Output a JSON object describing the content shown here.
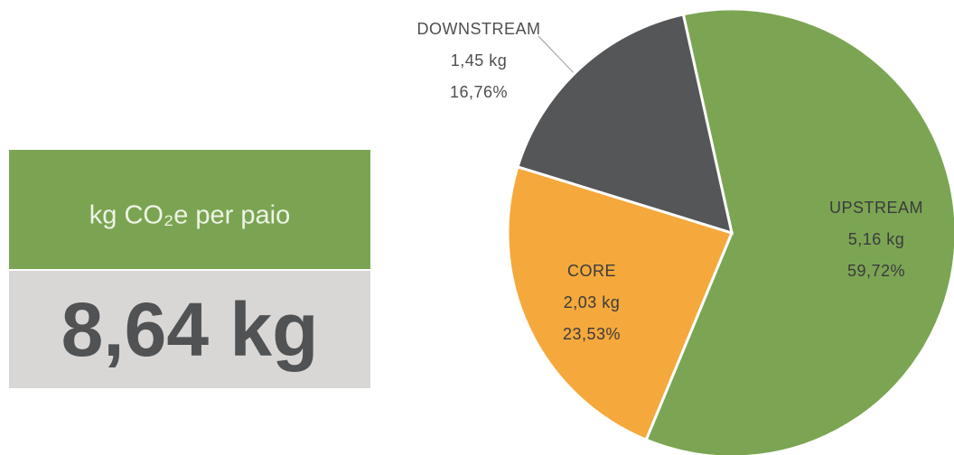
{
  "chart_data": {
    "type": "pie",
    "categories": [
      "UPSTREAM",
      "CORE",
      "DOWNSTREAM"
    ],
    "values": [
      59.72,
      23.53,
      16.76
    ],
    "value_labels": [
      "59,72%",
      "23,53%",
      "16,76%"
    ],
    "amounts": [
      "5,16 kg",
      "2,03 kg",
      "1,45 kg"
    ],
    "colors": [
      "#7ba553",
      "#f5a83b",
      "#545658"
    ]
  },
  "summary": {
    "unit_label": "kg CO₂e per paio",
    "total": "8,64 kg"
  }
}
